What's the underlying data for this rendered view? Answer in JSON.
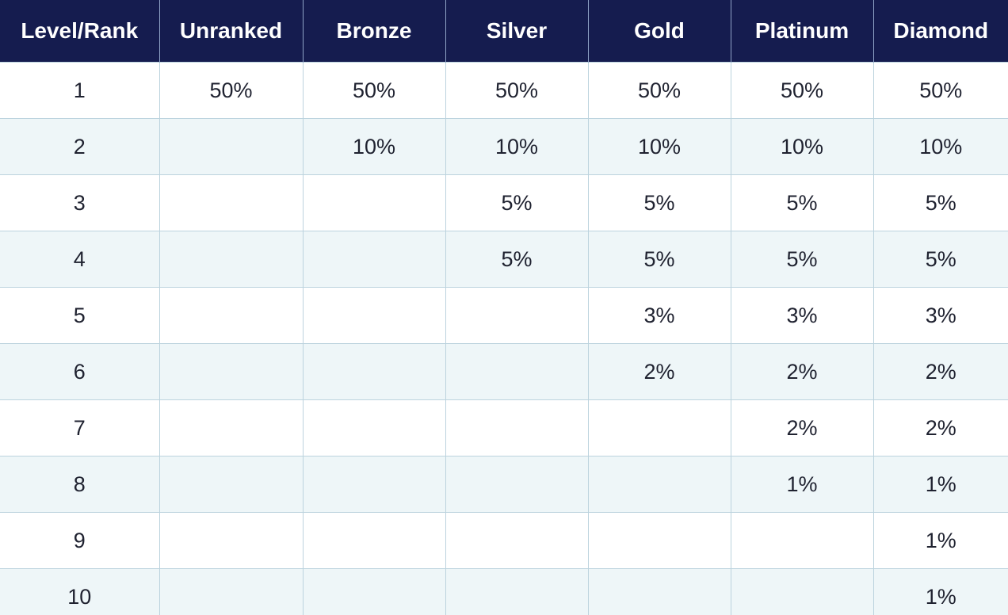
{
  "table": {
    "headers": [
      "Level/Rank",
      "Unranked",
      "Bronze",
      "Silver",
      "Gold",
      "Platinum",
      "Diamond"
    ],
    "rows": [
      [
        "1",
        "50%",
        "50%",
        "50%",
        "50%",
        "50%",
        "50%"
      ],
      [
        "2",
        "",
        "10%",
        "10%",
        "10%",
        "10%",
        "10%"
      ],
      [
        "3",
        "",
        "",
        "5%",
        "5%",
        "5%",
        "5%"
      ],
      [
        "4",
        "",
        "",
        "5%",
        "5%",
        "5%",
        "5%"
      ],
      [
        "5",
        "",
        "",
        "",
        "3%",
        "3%",
        "3%"
      ],
      [
        "6",
        "",
        "",
        "",
        "2%",
        "2%",
        "2%"
      ],
      [
        "7",
        "",
        "",
        "",
        "",
        "2%",
        "2%"
      ],
      [
        "8",
        "",
        "",
        "",
        "",
        "1%",
        "1%"
      ],
      [
        "9",
        "",
        "",
        "",
        "",
        "",
        "1%"
      ],
      [
        "10",
        "",
        "",
        "",
        "",
        "",
        "1%"
      ]
    ]
  },
  "colors": {
    "header_bg": "#151c4f",
    "header_text": "#ffffff",
    "row_alt_bg": "#eef6f8",
    "row_bg": "#ffffff",
    "grid_line": "#bcd3de"
  }
}
